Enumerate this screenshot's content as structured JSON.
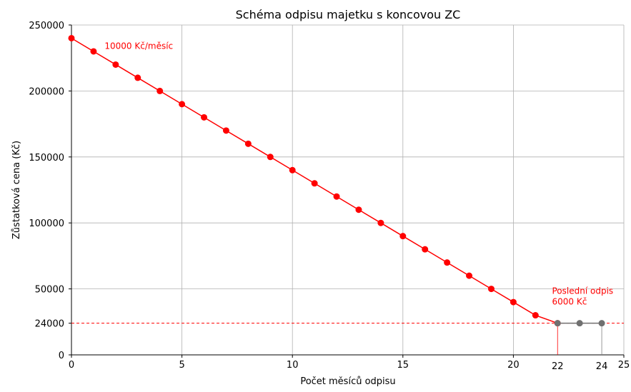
{
  "chart_data": {
    "type": "line",
    "title": "Schéma odpisu majetku s koncovou ZC",
    "xlabel": "Počet měsíců odpisu",
    "ylabel": "Zůstatková cena (Kč)",
    "xlim": [
      0,
      25
    ],
    "ylim": [
      0,
      250000
    ],
    "x_ticks": [
      0,
      5,
      10,
      15,
      20,
      25
    ],
    "y_ticks": [
      0,
      50000,
      100000,
      150000,
      200000,
      250000
    ],
    "grid": true,
    "series": [
      {
        "color": "#ff0000",
        "x": [
          0,
          1,
          2,
          3,
          4,
          5,
          6,
          7,
          8,
          9,
          10,
          11,
          12,
          13,
          14,
          15,
          16,
          17,
          18,
          19,
          20,
          21,
          22
        ],
        "y": [
          240000,
          230000,
          220000,
          210000,
          200000,
          190000,
          180000,
          170000,
          160000,
          150000,
          140000,
          130000,
          120000,
          110000,
          100000,
          90000,
          80000,
          70000,
          60000,
          50000,
          40000,
          30000,
          24000
        ]
      },
      {
        "color": "#707070",
        "x": [
          22,
          23,
          24
        ],
        "y": [
          24000,
          24000,
          24000
        ]
      }
    ],
    "residual_line": {
      "y": 24000,
      "label": "24000",
      "color": "#ff0000"
    },
    "markers": [
      {
        "x": 22,
        "label": "22",
        "color": "#ff0000"
      },
      {
        "x": 24,
        "label": "24",
        "color": "#808080"
      }
    ],
    "annotations": [
      {
        "text": "10000 Kč/měsíc",
        "x": 1.5,
        "y": 232000,
        "color": "#ff0000"
      },
      {
        "lines": [
          "Poslední odpis",
          "6000 Kč"
        ],
        "x": 21.75,
        "y": 42000,
        "color": "#ff0000"
      }
    ]
  }
}
